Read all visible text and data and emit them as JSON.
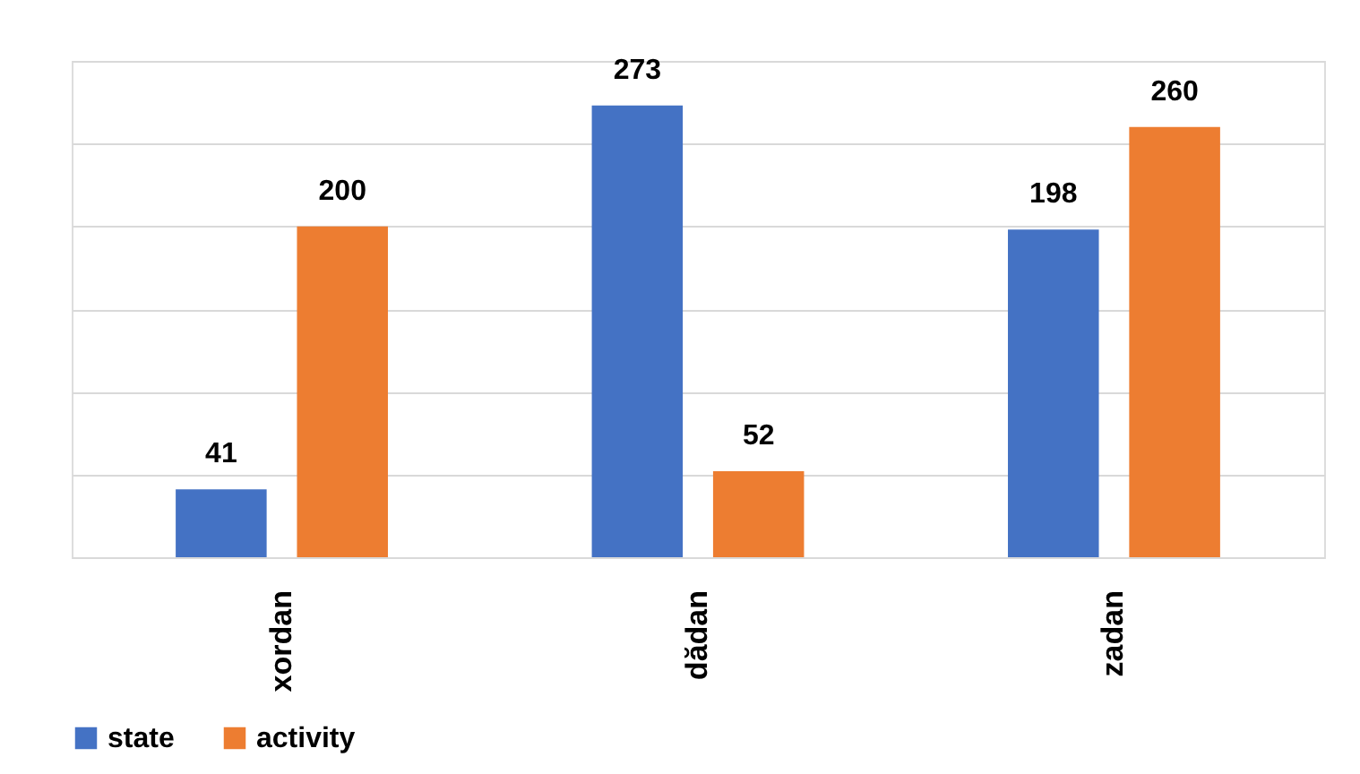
{
  "chart_data": {
    "type": "bar",
    "categories": [
      "xordan",
      "dădan",
      "zadan"
    ],
    "series": [
      {
        "name": "state",
        "color": "#4472c4",
        "values": [
          41,
          273,
          198
        ]
      },
      {
        "name": "activity",
        "color": "#ed7d31",
        "values": [
          200,
          52,
          260
        ]
      }
    ],
    "ylim": [
      0,
      300
    ],
    "yticks": [
      {
        "value": 0,
        "label": null
      },
      {
        "value": 50,
        "label": null
      },
      {
        "value": 100,
        "label": null
      },
      {
        "value": 150,
        "label": null
      },
      {
        "value": 200,
        "label": null
      },
      {
        "value": 250,
        "label": null
      },
      {
        "value": 300,
        "label": null
      }
    ],
    "tick_labels": "x",
    "grid": "y",
    "legend": "bottom",
    "data_labels": true
  }
}
